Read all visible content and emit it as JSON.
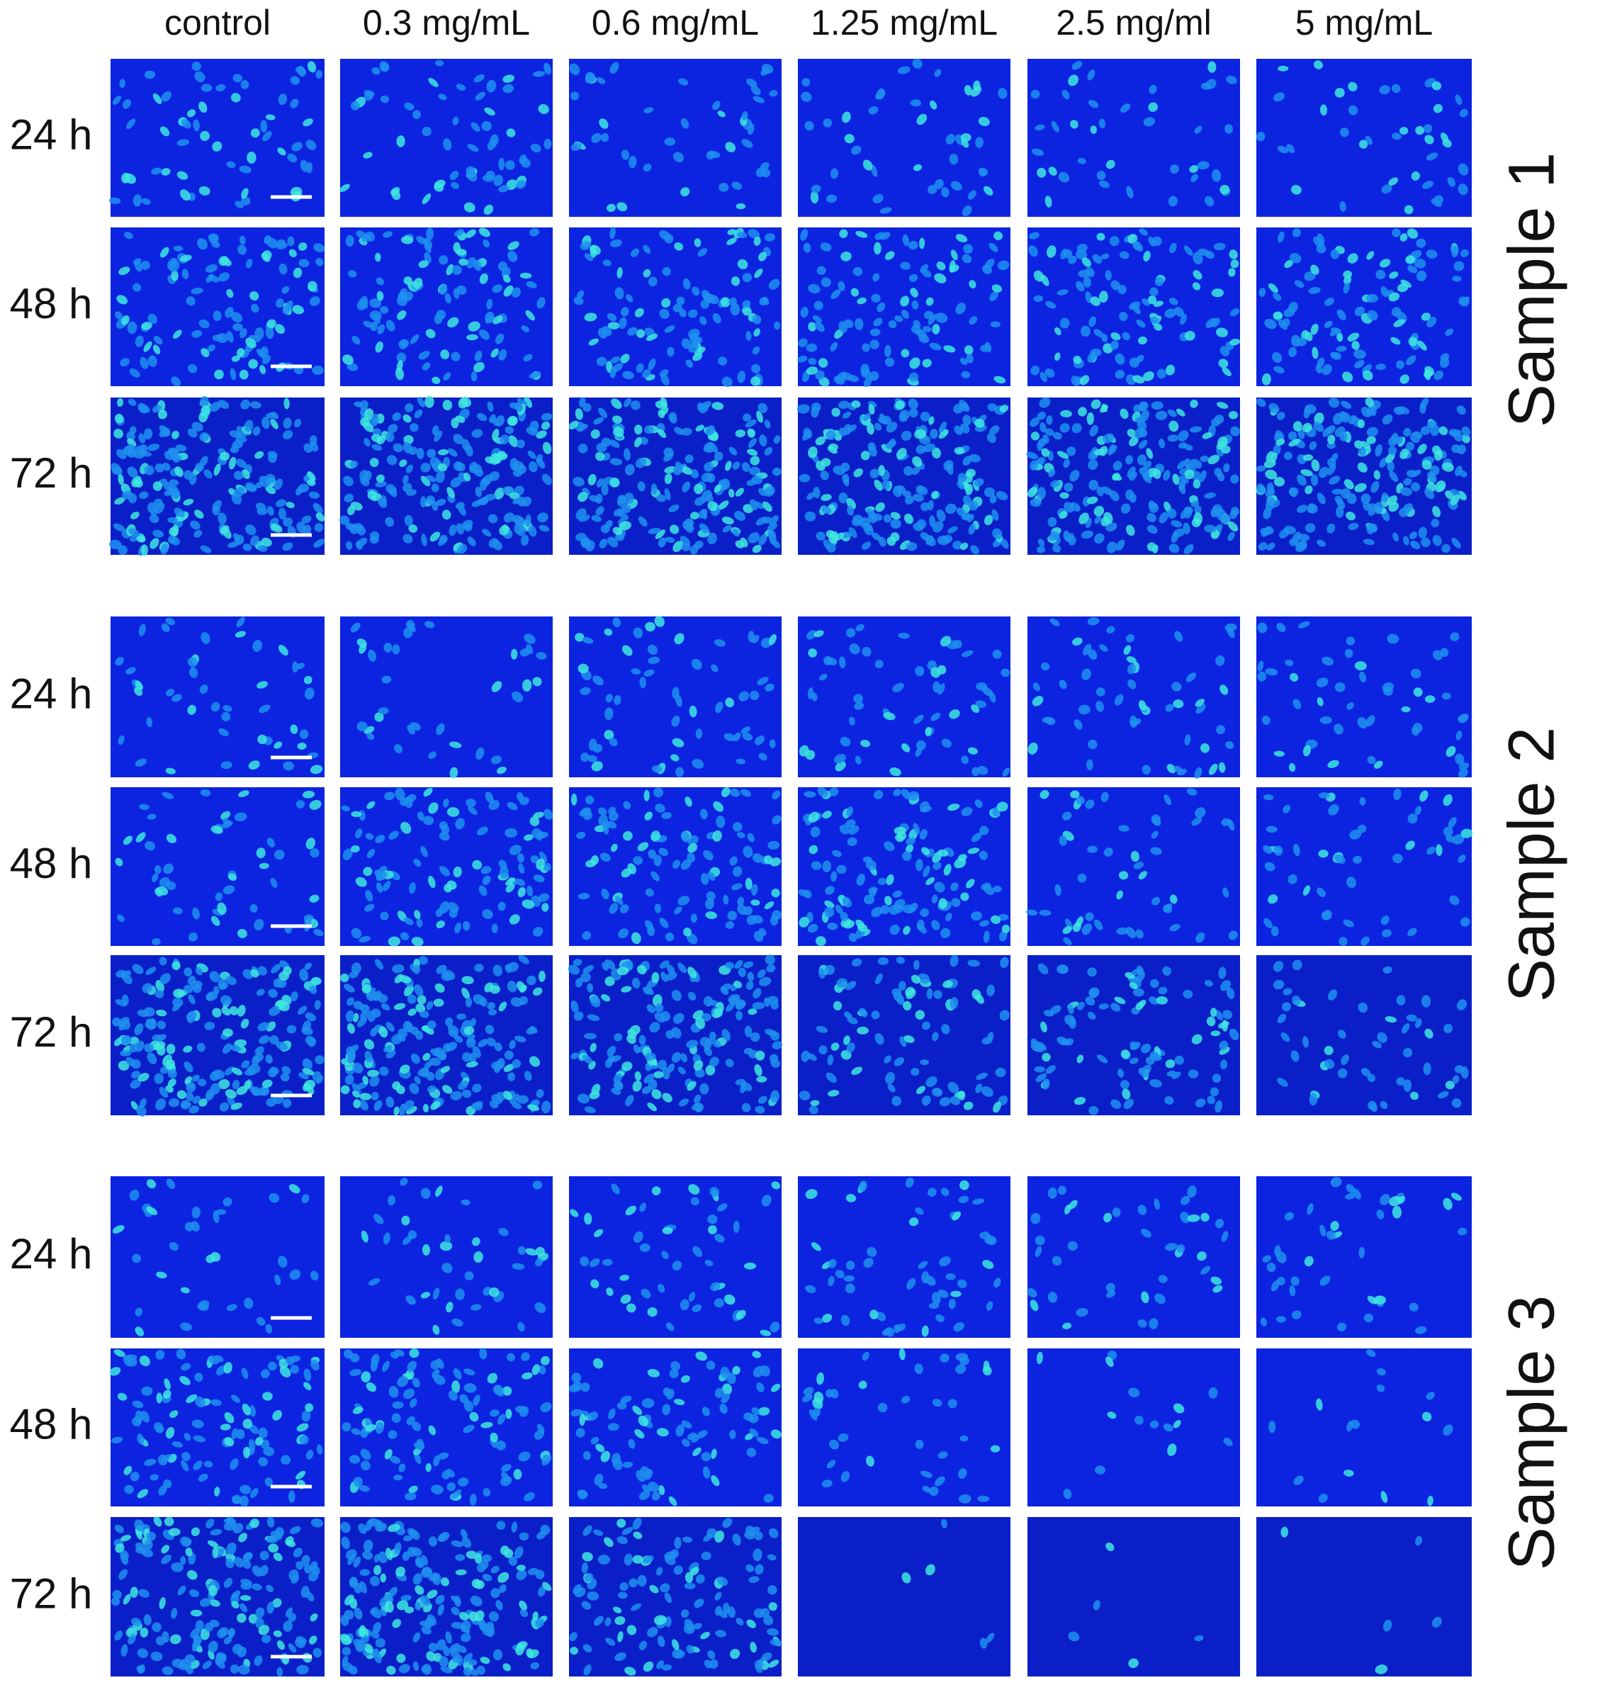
{
  "columns": [
    "control",
    "0.3 mg/mL",
    "0.6 mg/mL",
    "1.25 mg/mL",
    "2.5 mg/ml",
    "5 mg/mL"
  ],
  "groups": [
    {
      "label": "Sample  1",
      "rows": [
        "24 h",
        "48 h",
        "72 h"
      ]
    },
    {
      "label": "Sample  2",
      "rows": [
        "24 h",
        "48 h",
        "72 h"
      ]
    },
    {
      "label": "Sample  3",
      "rows": [
        "24 h",
        "48 h",
        "72 h"
      ]
    }
  ]
}
